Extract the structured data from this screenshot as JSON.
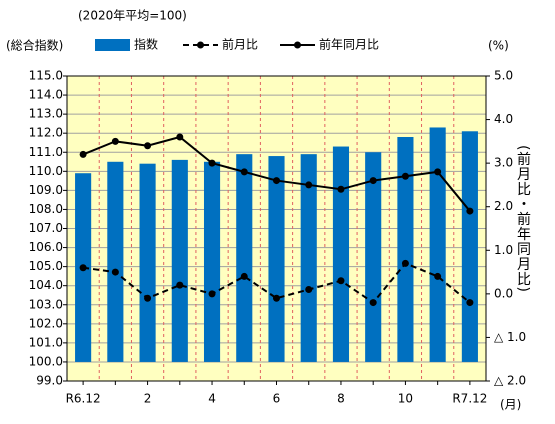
{
  "chart_data": {
    "type": "bar",
    "subtitle": "(2020年平均=100)",
    "ylabel": "(総合指数)",
    "y2unit": "(%)",
    "y2label": "(前月比・前年同月比)",
    "xunit": "(月)",
    "categories": [
      "R6.12",
      null,
      "2",
      null,
      "4",
      null,
      "6",
      null,
      "8",
      null,
      "10",
      null,
      "R7.12"
    ],
    "bar_base": 100,
    "background": "#ffffc0",
    "series": [
      {
        "name": "指数",
        "type": "bar",
        "color": "#0070c0",
        "values": [
          109.9,
          110.5,
          110.4,
          110.6,
          110.5,
          110.9,
          110.8,
          110.9,
          111.3,
          111.0,
          111.8,
          112.3,
          112.1
        ]
      },
      {
        "name": "前月比",
        "type": "line",
        "dashed": true,
        "axis": "y2",
        "color": "#000000",
        "values": [
          0.6,
          0.5,
          -0.1,
          0.2,
          0.0,
          0.4,
          -0.1,
          0.1,
          0.3,
          -0.2,
          0.7,
          0.4,
          -0.2
        ]
      },
      {
        "name": "前年同月比",
        "type": "line",
        "dashed": false,
        "axis": "y2",
        "color": "#000000",
        "values": [
          3.2,
          3.5,
          3.4,
          3.6,
          3.0,
          2.8,
          2.6,
          2.5,
          2.4,
          2.6,
          2.7,
          2.8,
          1.9
        ]
      }
    ],
    "ylim": [
      99,
      115
    ],
    "yticks": [
      {
        "value": 99,
        "label": "99.0"
      },
      {
        "value": 100,
        "label": "100.0"
      },
      {
        "value": 101,
        "label": "101.0"
      },
      {
        "value": 102,
        "label": "102.0"
      },
      {
        "value": 103,
        "label": "103.0"
      },
      {
        "value": 104,
        "label": "104.0"
      },
      {
        "value": 105,
        "label": "105.0"
      },
      {
        "value": 106,
        "label": "106.0"
      },
      {
        "value": 107,
        "label": "107.0"
      },
      {
        "value": 108,
        "label": "108.0"
      },
      {
        "value": 109,
        "label": "109.0"
      },
      {
        "value": 110,
        "label": "110.0"
      },
      {
        "value": 111,
        "label": "111.0"
      },
      {
        "value": 112,
        "label": "112.0"
      },
      {
        "value": 113,
        "label": "113.0"
      },
      {
        "value": 114,
        "label": "114.0"
      },
      {
        "value": 115,
        "label": "115.0"
      }
    ],
    "y2lim": [
      -2,
      5
    ],
    "y2ticks": [
      {
        "value": 5,
        "label": "5.0"
      },
      {
        "value": 4,
        "label": "4.0"
      },
      {
        "value": 3,
        "label": "3.0"
      },
      {
        "value": 2,
        "label": "2.0"
      },
      {
        "value": 1,
        "label": "1.0"
      },
      {
        "value": 0,
        "label": "0.0"
      },
      {
        "value": -1,
        "label": "△ 1.0"
      },
      {
        "value": -2,
        "label": "△ 2.0"
      }
    ],
    "grid": true
  }
}
